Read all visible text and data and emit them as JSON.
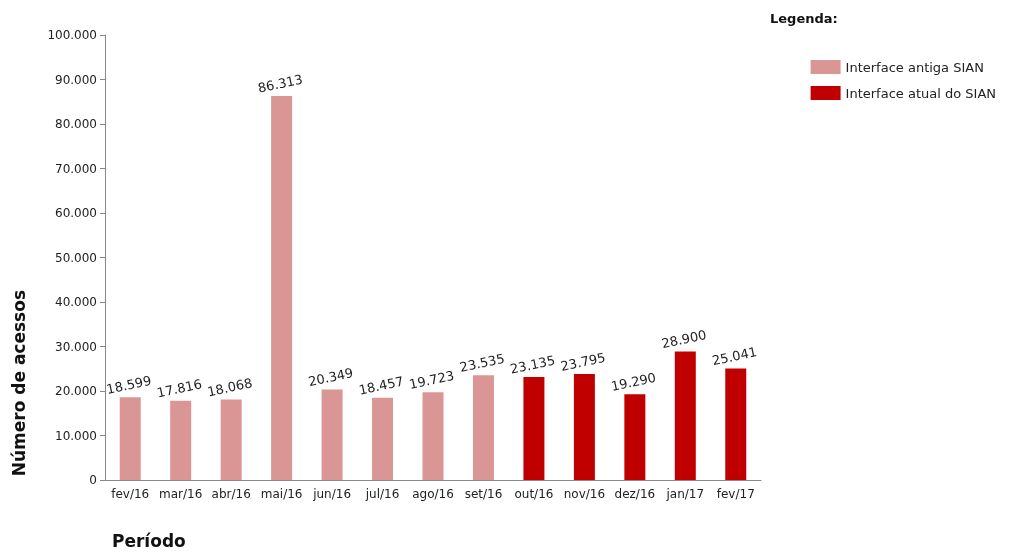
{
  "chart_data": {
    "type": "bar",
    "xlabel": "Período",
    "ylabel": "Número de acessos",
    "legend_title": "Legenda:",
    "categories": [
      "fev/16",
      "mar/16",
      "abr/16",
      "mai/16",
      "jun/16",
      "jul/16",
      "ago/16",
      "set/16",
      "out/16",
      "nov/16",
      "dez/16",
      "jan/17",
      "fev/17"
    ],
    "series": [
      {
        "name": "Interface antiga SIAN",
        "color": "#da9694",
        "values": [
          18599,
          17816,
          18068,
          86313,
          20349,
          18457,
          19723,
          23535,
          null,
          null,
          null,
          null,
          null
        ],
        "value_labels": [
          "18.599",
          "17.816",
          "18.068",
          "86.313",
          "20.349",
          "18.457",
          "19.723",
          "23.535",
          null,
          null,
          null,
          null,
          null
        ]
      },
      {
        "name": "Interface atual do SIAN",
        "color": "#c00000",
        "values": [
          null,
          null,
          null,
          null,
          null,
          null,
          null,
          null,
          23135,
          23795,
          19290,
          28900,
          25041
        ],
        "value_labels": [
          null,
          null,
          null,
          null,
          null,
          null,
          null,
          null,
          "23.135",
          "23.795",
          "19.290",
          "28.900",
          "25.041"
        ]
      }
    ],
    "ylim": [
      0,
      100000
    ],
    "yticks": [
      {
        "value": 0,
        "label": "0"
      },
      {
        "value": 10000,
        "label": "10.000"
      },
      {
        "value": 20000,
        "label": "20.000"
      },
      {
        "value": 30000,
        "label": "30.000"
      },
      {
        "value": 40000,
        "label": "40.000"
      },
      {
        "value": 50000,
        "label": "50.000"
      },
      {
        "value": 60000,
        "label": "60.000"
      },
      {
        "value": 70000,
        "label": "70.000"
      },
      {
        "value": 80000,
        "label": "80.000"
      },
      {
        "value": 90000,
        "label": "90.000"
      },
      {
        "value": 100000,
        "label": "100.000"
      }
    ],
    "grid": false,
    "legend": "top right"
  }
}
